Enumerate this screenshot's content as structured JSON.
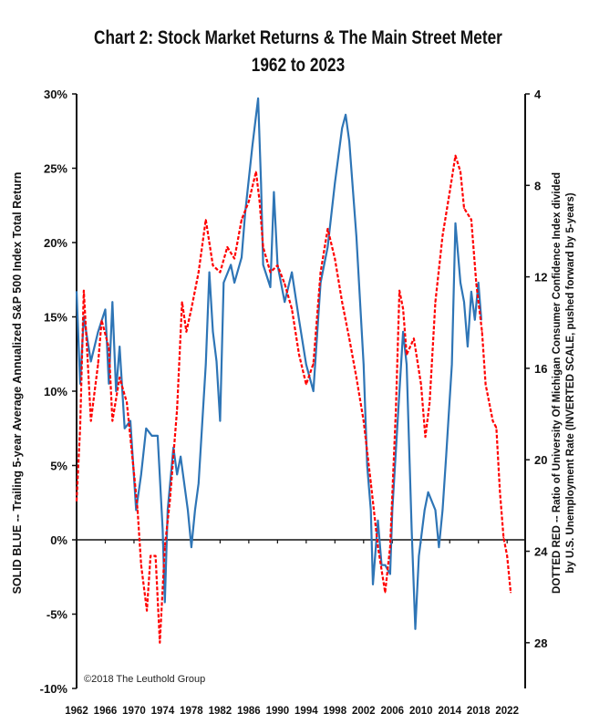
{
  "chart_data": {
    "type": "line",
    "title": "Chart 2: Stock Market Returns & The Main Street Meter",
    "subtitle": "1962 to 2023",
    "ylabel_left": "SOLID BLUE -- Trailing 5-year Average Annualized S&P 500 Index Total Return",
    "ylabel_right_line1": "DOTTED RED -- Ratio of University Of Michigan Consumer Confidence Index  divided",
    "ylabel_right_line2": "by U.S. Unemployment Rate (INVERTED SCALE, pushed forward by 5-years)",
    "annotation": "©2018 The Leuthold Group",
    "ylim_left": [
      -10,
      30
    ],
    "ylim_right_inverted": [
      4,
      30
    ],
    "xlim": [
      1962,
      2024.5
    ],
    "left_ticks": [
      "30%",
      "25%",
      "20%",
      "15%",
      "10%",
      "5%",
      "0%",
      "-5%",
      "-10%"
    ],
    "left_tick_values": [
      30,
      25,
      20,
      15,
      10,
      5,
      0,
      -5,
      -10
    ],
    "right_ticks": [
      "4",
      "8",
      "12",
      "16",
      "20",
      "24",
      "28"
    ],
    "right_tick_values": [
      4,
      8,
      12,
      16,
      20,
      24,
      28
    ],
    "x_ticks": [
      "1962",
      "1966",
      "1970",
      "1974",
      "1978",
      "1982",
      "1986",
      "1990",
      "1994",
      "1998",
      "2002",
      "2006",
      "2010",
      "2014",
      "2018",
      "2022"
    ],
    "x_tick_values": [
      1962,
      1966,
      1970,
      1974,
      1978,
      1982,
      1986,
      1990,
      1994,
      1998,
      2002,
      2006,
      2010,
      2014,
      2018,
      2022
    ],
    "series": [
      {
        "name": "S&P 500 5-yr Trailing Annualized Return",
        "axis": "left",
        "color": "#2e75b6",
        "style": "solid",
        "x": [
          1962,
          1962.5,
          1963,
          1964,
          1965,
          1966,
          1966.5,
          1967,
          1967.5,
          1968,
          1968.7,
          1969.5,
          1970.3,
          1971,
          1971.7,
          1972.5,
          1973.3,
          1974,
          1974.3,
          1974.7,
          1975.5,
          1976,
          1976.5,
          1977.5,
          1978,
          1978.5,
          1979,
          1980,
          1980.5,
          1981,
          1981.5,
          1982,
          1982.5,
          1983.5,
          1984,
          1985,
          1985.5,
          1986.5,
          1987.3,
          1987.7,
          1988,
          1989,
          1989.5,
          1990,
          1991,
          1992,
          1993,
          1994,
          1995,
          1996,
          1997,
          1998,
          1999,
          1999.5,
          2000,
          2001,
          2002,
          2002.5,
          2003,
          2003.3,
          2004,
          2004.5,
          2005,
          2005.7,
          2006,
          2007,
          2007.5,
          2008,
          2008.7,
          2009.2,
          2009.7,
          2010.5,
          2011,
          2012,
          2012.5,
          2013,
          2013.5,
          2014.3,
          2014.8,
          2015.5,
          2016,
          2016.5,
          2017,
          2017.5,
          2018,
          2018.4
        ],
        "values": [
          16.7,
          10.5,
          15,
          12,
          14,
          15.5,
          10.5,
          16,
          10,
          13,
          7.5,
          8,
          2,
          4.4,
          7.5,
          7,
          7,
          0.7,
          -4.2,
          2,
          6.2,
          4.4,
          5.6,
          2,
          -0.5,
          2,
          3.8,
          11.8,
          18,
          14,
          12,
          8,
          17.3,
          18.5,
          17.3,
          19,
          22,
          26.5,
          29.7,
          24,
          18.5,
          17,
          23.4,
          18.5,
          16,
          18,
          14.8,
          11.8,
          10,
          17.3,
          19.7,
          24,
          27.7,
          28.6,
          26.8,
          20.4,
          11.8,
          5,
          2,
          -3,
          1.3,
          -1.7,
          -1.7,
          -2.3,
          2,
          10,
          14,
          11.8,
          0.7,
          -6,
          -1.1,
          2,
          3.2,
          2,
          -0.5,
          2,
          5.6,
          11.8,
          21.3,
          17.3,
          16,
          13,
          16.7,
          14.8,
          17.3,
          14.8
        ]
      },
      {
        "name": "Consumer Confidence / Unemployment Rate (inverted, +5 yrs)",
        "axis": "right",
        "color": "#ff0000",
        "style": "dotted",
        "x": [
          1962,
          1962.5,
          1963,
          1963.5,
          1964,
          1965,
          1965.5,
          1966.5,
          1967,
          1968,
          1969,
          1970,
          1970.5,
          1971,
          1971.8,
          1972.3,
          1973,
          1973.6,
          1974.3,
          1975,
          1976,
          1976.7,
          1977.3,
          1978,
          1979,
          1980,
          1981,
          1982,
          1983,
          1984,
          1985,
          1986,
          1987,
          1987.5,
          1988,
          1989,
          1990,
          1991,
          1992,
          1993,
          1994,
          1995,
          1996,
          1997,
          1998,
          1999,
          2000,
          2001,
          2002,
          2003,
          2004,
          2005,
          2005.7,
          2006.5,
          2007,
          2007.5,
          2008,
          2009,
          2010,
          2010.6,
          2011.2,
          2012,
          2013,
          2014,
          2014.8,
          2015.5,
          2016,
          2017,
          2017.7,
          2018.5,
          2019,
          2020,
          2020.5,
          2021,
          2021.5,
          2022,
          2022.5
        ],
        "values": [
          21.8,
          18.6,
          12.6,
          15.4,
          18.3,
          15.8,
          13.9,
          15.1,
          18.3,
          16.4,
          17.5,
          20.6,
          22.2,
          24.6,
          26.6,
          24.2,
          24.2,
          28.0,
          23.8,
          21.8,
          17.8,
          13.1,
          14.4,
          13.4,
          11.8,
          9.5,
          11.5,
          11.8,
          10.7,
          11.2,
          9.5,
          8.7,
          7.4,
          8.7,
          10.7,
          11.8,
          11.5,
          12.3,
          13.4,
          15.4,
          16.7,
          15.8,
          11.8,
          9.9,
          11.2,
          13.1,
          14.7,
          16.4,
          18.3,
          21.0,
          23.8,
          25.8,
          23.8,
          17.8,
          12.6,
          13.4,
          15.4,
          14.7,
          16.7,
          19.0,
          17.5,
          13.1,
          10.2,
          8.3,
          6.7,
          7.4,
          9.0,
          9.5,
          12.3,
          14.4,
          16.7,
          18.3,
          18.6,
          21.4,
          23.4,
          24.2,
          25.8
        ]
      }
    ]
  }
}
